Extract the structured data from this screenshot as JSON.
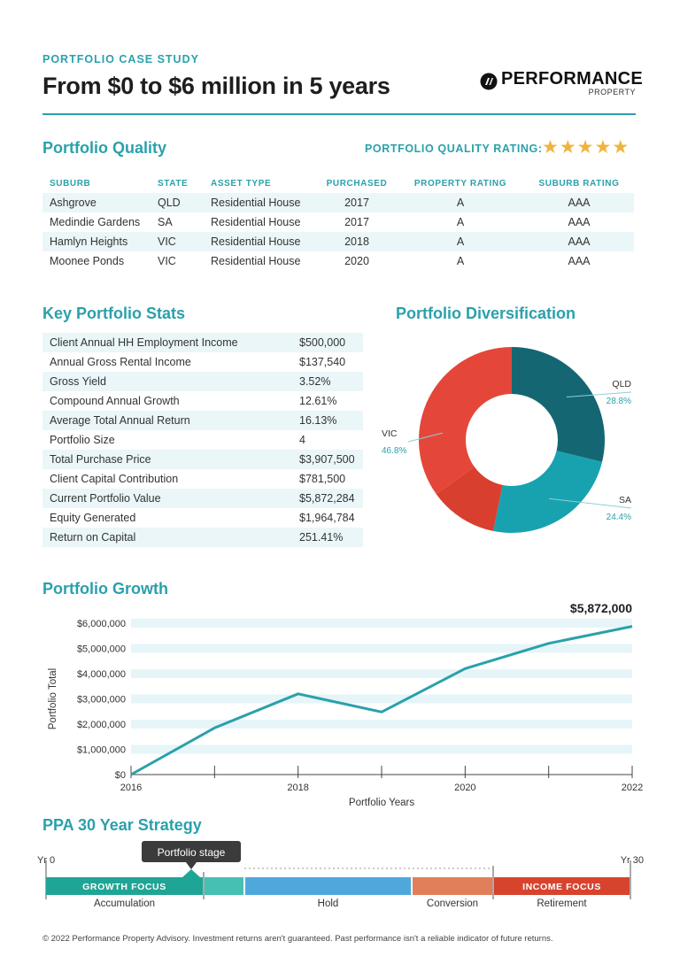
{
  "header": {
    "eyebrow": "PORTFOLIO CASE STUDY",
    "headline": "From $0 to $6 million in 5 years",
    "logo_word": "PERFORMANCE",
    "logo_sub": "PROPERTY"
  },
  "quality": {
    "title": "Portfolio Quality",
    "rating_label": "PORTFOLIO QUALITY RATING:",
    "stars": "★★★★★",
    "rating_value": 5,
    "columns": [
      "SUBURB",
      "STATE",
      "ASSET TYPE",
      "PURCHASED",
      "PROPERTY RATING",
      "SUBURB RATING"
    ],
    "rows": [
      [
        "Ashgrove",
        "QLD",
        "Residential House",
        "2017",
        "A",
        "AAA"
      ],
      [
        "Medindie Gardens",
        "SA",
        "Residential House",
        "2017",
        "A",
        "AAA"
      ],
      [
        "Hamlyn Heights",
        "VIC",
        "Residential House",
        "2018",
        "A",
        "AAA"
      ],
      [
        "Moonee Ponds",
        "VIC",
        "Residential House",
        "2020",
        "A",
        "AAA"
      ]
    ]
  },
  "stats": {
    "title": "Key Portfolio Stats",
    "rows": [
      [
        "Client Annual HH Employment Income",
        "$500,000"
      ],
      [
        "Annual Gross Rental Income",
        "$137,540"
      ],
      [
        "Gross Yield",
        "3.52%"
      ],
      [
        "Compound Annual Growth",
        "12.61%"
      ],
      [
        "Average Total Annual Return",
        "16.13%"
      ],
      [
        "Portfolio Size",
        "4"
      ],
      [
        "Total Purchase Price",
        "$3,907,500"
      ],
      [
        "Client Capital Contribution",
        "$781,500"
      ],
      [
        "Current Portfolio Value",
        "$5,872,284"
      ],
      [
        "Equity Generated",
        "$1,964,784"
      ],
      [
        "Return on Capital",
        "251.41%"
      ]
    ]
  },
  "diversification": {
    "title": "Portfolio Diversification"
  },
  "growth": {
    "title": "Portfolio Growth",
    "callout": "$5,872,000"
  },
  "strategy": {
    "title": "PPA 30 Year Strategy",
    "start_label": "Yr 0",
    "end_label": "Yr 30",
    "tooltip": "Portfolio stage",
    "segments": [
      {
        "label": "GROWTH FOCUS",
        "sublabel": "Accumulation",
        "color": "#1fa596"
      },
      {
        "label": "",
        "sublabel": "",
        "color": "#46c0b2"
      },
      {
        "label": "",
        "sublabel": "Hold",
        "color": "#4ea8dc"
      },
      {
        "label": "",
        "sublabel": "Conversion",
        "color": "#e07f5a"
      },
      {
        "label": "INCOME FOCUS",
        "sublabel": "Retirement",
        "color": "#d8432e"
      }
    ]
  },
  "footer": {
    "text": "© 2022 Performance Property Advisory.  Investment returns aren't guaranteed. Past performance isn't a reliable indicator of future returns."
  },
  "chart_data": [
    {
      "type": "pie",
      "title": "Portfolio Diversification",
      "categories": [
        "QLD",
        "SA",
        "VIC"
      ],
      "values": [
        28.8,
        24.4,
        46.8
      ],
      "value_labels": [
        "28.8%",
        "24.4%",
        "46.8%"
      ],
      "colors": [
        "#156673",
        "#18a2b0",
        "#e4473a"
      ],
      "vic_split": [
        11.9,
        34.9
      ],
      "vic_split_colors": [
        "#d93f2e",
        "#e4473a"
      ]
    },
    {
      "type": "line",
      "title": "Portfolio Growth",
      "xlabel": "Portfolio Years",
      "ylabel": "Portfolio Total",
      "x": [
        2016,
        2017,
        2018,
        2019,
        2020,
        2021,
        2022
      ],
      "values": [
        0,
        1850000,
        3200000,
        2480000,
        4200000,
        5200000,
        5872000
      ],
      "xlim": [
        2016,
        2022
      ],
      "ylim": [
        0,
        6000000
      ],
      "x_ticks": [
        "2016",
        "2018",
        "2020",
        "2022"
      ],
      "y_ticks": [
        "$0",
        "$1,000,000",
        "$2,000,000",
        "$3,000,000",
        "$4,000,000",
        "$5,000,000",
        "$6,000,000"
      ],
      "line_color": "#2aa1ab",
      "band_color": "#e6f5f8"
    }
  ]
}
